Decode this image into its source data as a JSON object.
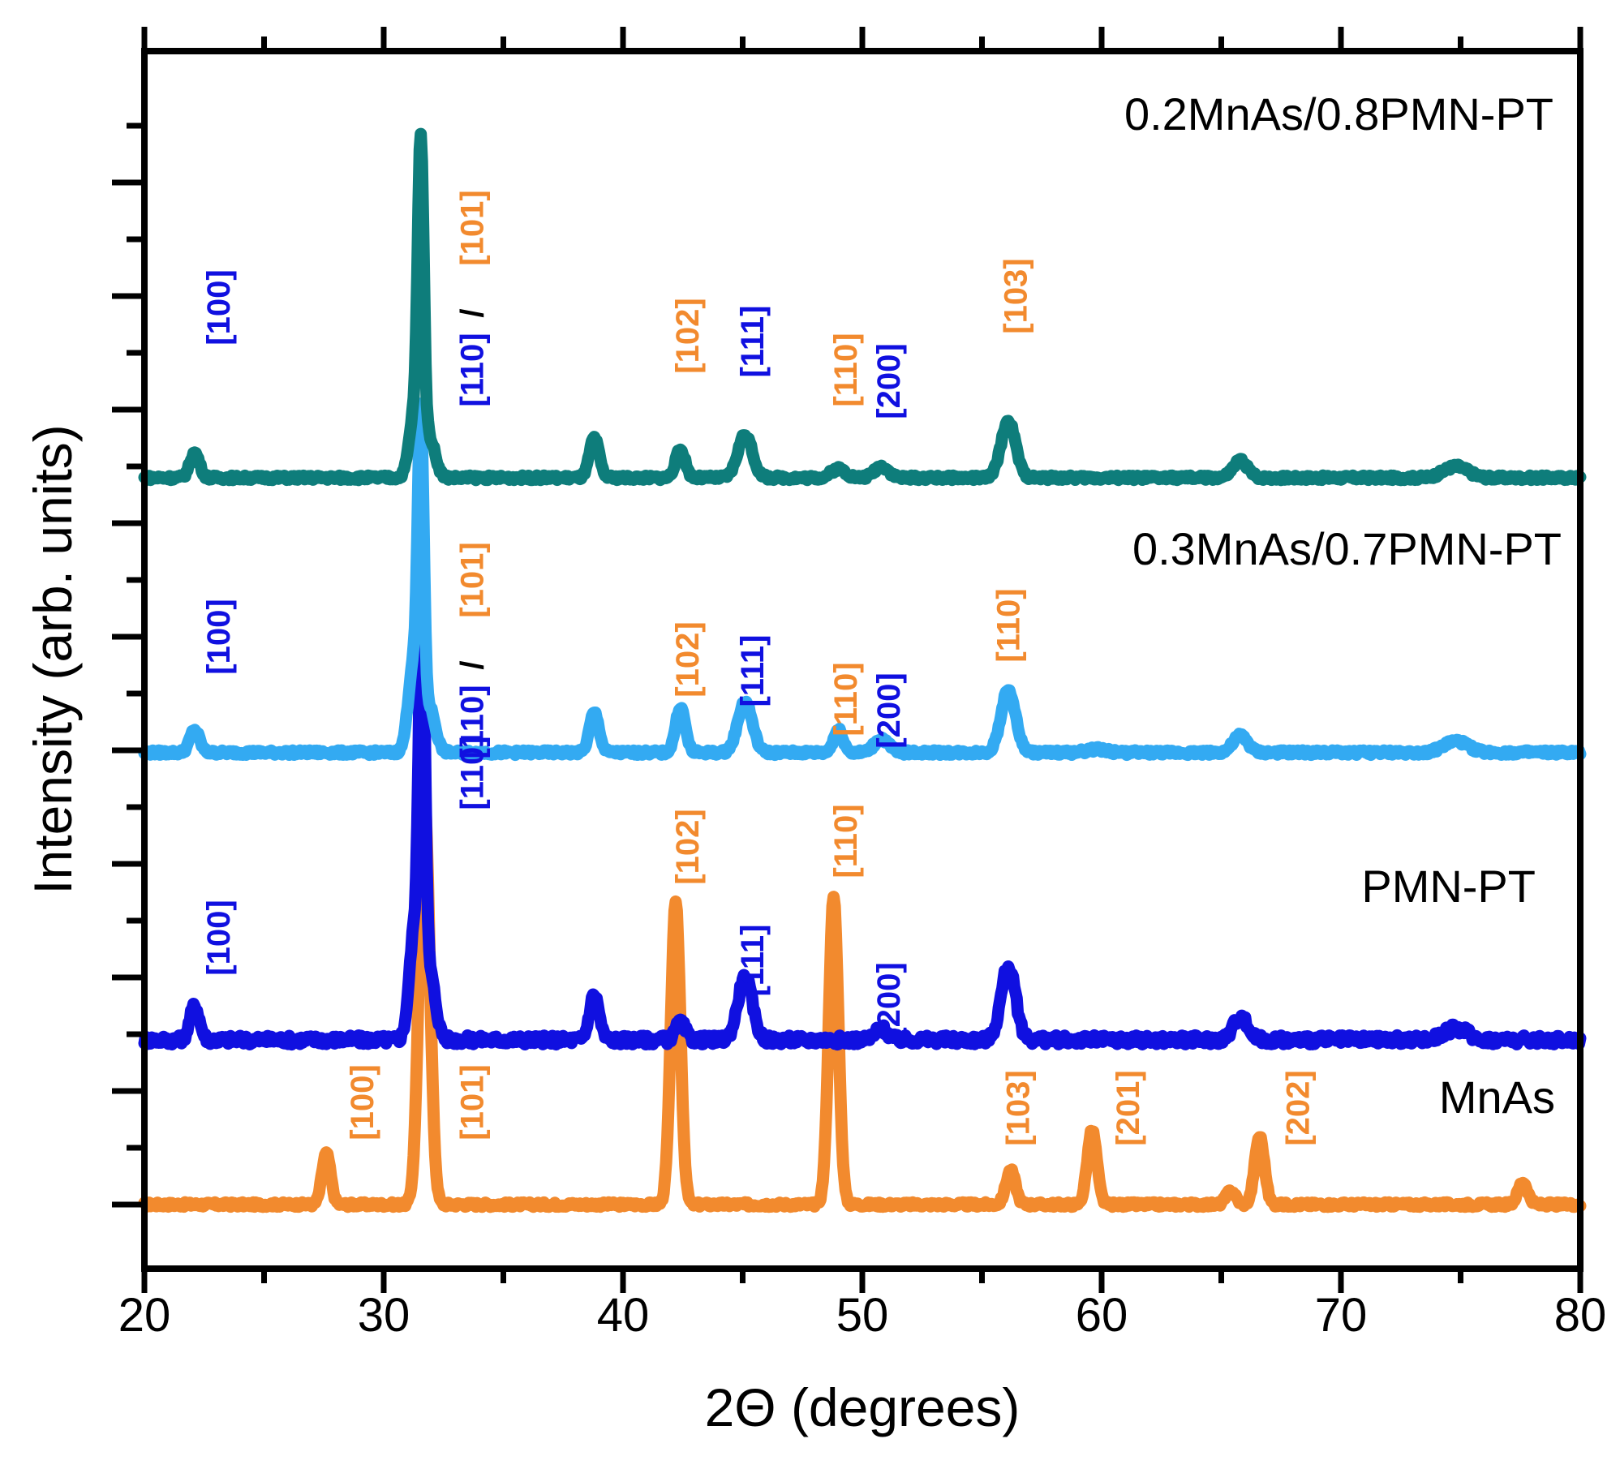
{
  "chart_data": {
    "type": "line",
    "title": "",
    "xlabel": "2Θ (degrees)",
    "ylabel": "Intensity (arb. units)",
    "xlim": [
      20,
      80
    ],
    "xticks": [
      20,
      30,
      40,
      50,
      60,
      70,
      80
    ],
    "xtick_labels": [
      "20",
      "30",
      "40",
      "50",
      "60",
      "70",
      "80"
    ],
    "ylim": [
      0,
      1.0
    ],
    "y_tick_labels_shown": false,
    "grid": false,
    "colors": {
      "pmn": "#1010e0",
      "mnas": "#f28a2e",
      "black": "#000000"
    },
    "series": [
      {
        "name": "MnAs",
        "label": "MnAs",
        "color": "#f28a2e",
        "baseline": 0.0,
        "noise": 0.002,
        "peaks": [
          [
            27.6,
            0.045,
            0.18
          ],
          [
            31.7,
            0.36,
            0.22
          ],
          [
            42.2,
            0.265,
            0.2
          ],
          [
            48.8,
            0.27,
            0.2
          ],
          [
            56.2,
            0.03,
            0.2
          ],
          [
            59.6,
            0.065,
            0.2
          ],
          [
            65.4,
            0.012,
            0.2
          ],
          [
            66.6,
            0.06,
            0.2
          ],
          [
            77.6,
            0.02,
            0.2
          ]
        ]
      },
      {
        "name": "PMN-PT",
        "label": "PMN-PT",
        "color": "#1010e0",
        "baseline": 0.145,
        "noise": 0.004,
        "peaks": [
          [
            22.1,
            0.03,
            0.2
          ],
          [
            31.3,
            0.1,
            0.22
          ],
          [
            31.6,
            0.35,
            0.12
          ],
          [
            31.9,
            0.06,
            0.25
          ],
          [
            38.8,
            0.04,
            0.2
          ],
          [
            42.4,
            0.015,
            0.2
          ],
          [
            45.1,
            0.055,
            0.3
          ],
          [
            50.8,
            0.01,
            0.25
          ],
          [
            56.1,
            0.065,
            0.3
          ],
          [
            65.8,
            0.02,
            0.3
          ],
          [
            74.8,
            0.01,
            0.5
          ]
        ]
      },
      {
        "name": "0.3MnAs/0.7PMN-PT",
        "label": "0.3MnAs/0.7PMN-PT",
        "color": "#33aaf2",
        "baseline": 0.398,
        "noise": 0.002,
        "peaks": [
          [
            22.1,
            0.02,
            0.2
          ],
          [
            31.25,
            0.08,
            0.22
          ],
          [
            31.55,
            0.26,
            0.12
          ],
          [
            31.9,
            0.04,
            0.25
          ],
          [
            38.8,
            0.035,
            0.2
          ],
          [
            42.4,
            0.04,
            0.2
          ],
          [
            45.1,
            0.045,
            0.3
          ],
          [
            49.0,
            0.02,
            0.2
          ],
          [
            50.8,
            0.012,
            0.3
          ],
          [
            56.1,
            0.055,
            0.3
          ],
          [
            59.8,
            0.003,
            0.4
          ],
          [
            65.8,
            0.015,
            0.3
          ],
          [
            74.8,
            0.01,
            0.5
          ]
        ]
      },
      {
        "name": "0.2MnAs/0.8PMN-PT",
        "label": "0.2MnAs/0.8PMN-PT",
        "color": "#0e7d7b",
        "baseline": 0.64,
        "noise": 0.002,
        "peaks": [
          [
            22.1,
            0.022,
            0.2
          ],
          [
            31.3,
            0.06,
            0.22
          ],
          [
            31.55,
            0.26,
            0.12
          ],
          [
            31.9,
            0.035,
            0.25
          ],
          [
            38.8,
            0.035,
            0.2
          ],
          [
            42.4,
            0.025,
            0.2
          ],
          [
            45.1,
            0.038,
            0.3
          ],
          [
            49.0,
            0.008,
            0.3
          ],
          [
            50.8,
            0.01,
            0.3
          ],
          [
            56.1,
            0.05,
            0.3
          ],
          [
            65.8,
            0.015,
            0.3
          ],
          [
            74.8,
            0.01,
            0.5
          ]
        ]
      }
    ],
    "annotations": [
      {
        "text": "[100]",
        "x": 23.2,
        "y": 0.79,
        "color": "#1010e0"
      },
      {
        "text": "[110]",
        "x": 33.8,
        "y": 0.735,
        "color": "#1010e0"
      },
      {
        "text": "/",
        "x": 33.8,
        "y": 0.785,
        "color": "#000000"
      },
      {
        "text": "[101]",
        "x": 33.8,
        "y": 0.86,
        "color": "#f28a2e"
      },
      {
        "text": "[102]",
        "x": 42.8,
        "y": 0.765,
        "color": "#f28a2e"
      },
      {
        "text": "[111]",
        "x": 45.5,
        "y": 0.76,
        "color": "#1010e0"
      },
      {
        "text": "[110]",
        "x": 49.4,
        "y": 0.735,
        "color": "#f28a2e"
      },
      {
        "text": "[200]",
        "x": 51.2,
        "y": 0.725,
        "color": "#1010e0"
      },
      {
        "text": "[103]",
        "x": 56.5,
        "y": 0.8,
        "color": "#f28a2e"
      },
      {
        "text": "[100]",
        "x": 23.2,
        "y": 0.5,
        "color": "#1010e0"
      },
      {
        "text": "[110]",
        "x": 33.8,
        "y": 0.425,
        "color": "#1010e0"
      },
      {
        "text": "/",
        "x": 33.8,
        "y": 0.475,
        "color": "#000000"
      },
      {
        "text": "[101]",
        "x": 33.8,
        "y": 0.55,
        "color": "#f28a2e"
      },
      {
        "text": "[102]",
        "x": 42.8,
        "y": 0.48,
        "color": "#f28a2e"
      },
      {
        "text": "[111]",
        "x": 45.5,
        "y": 0.47,
        "color": "#1010e0"
      },
      {
        "text": "[110]",
        "x": 49.4,
        "y": 0.445,
        "color": "#f28a2e"
      },
      {
        "text": "[200]",
        "x": 51.2,
        "y": 0.435,
        "color": "#1010e0"
      },
      {
        "text": "[110]",
        "x": 56.2,
        "y": 0.51,
        "color": "#f28a2e"
      },
      {
        "text": "[100]",
        "x": 23.2,
        "y": 0.235,
        "color": "#1010e0"
      },
      {
        "text": "[110]",
        "x": 33.8,
        "y": 0.38,
        "color": "#1010e0"
      },
      {
        "text": "[102]",
        "x": 42.8,
        "y": 0.315,
        "color": "#f28a2e"
      },
      {
        "text": "[111]",
        "x": 45.5,
        "y": 0.215,
        "color": "#1010e0"
      },
      {
        "text": "[110]",
        "x": 49.4,
        "y": 0.32,
        "color": "#f28a2e"
      },
      {
        "text": "[200]",
        "x": 51.2,
        "y": 0.18,
        "color": "#1010e0"
      },
      {
        "text": "[100]",
        "x": 29.2,
        "y": 0.09,
        "color": "#f28a2e"
      },
      {
        "text": "[101]",
        "x": 33.8,
        "y": 0.09,
        "color": "#f28a2e"
      },
      {
        "text": "[103]",
        "x": 56.6,
        "y": 0.085,
        "color": "#f28a2e"
      },
      {
        "text": "[201]",
        "x": 61.2,
        "y": 0.085,
        "color": "#f28a2e"
      },
      {
        "text": "[202]",
        "x": 68.3,
        "y": 0.085,
        "color": "#f28a2e"
      }
    ]
  }
}
